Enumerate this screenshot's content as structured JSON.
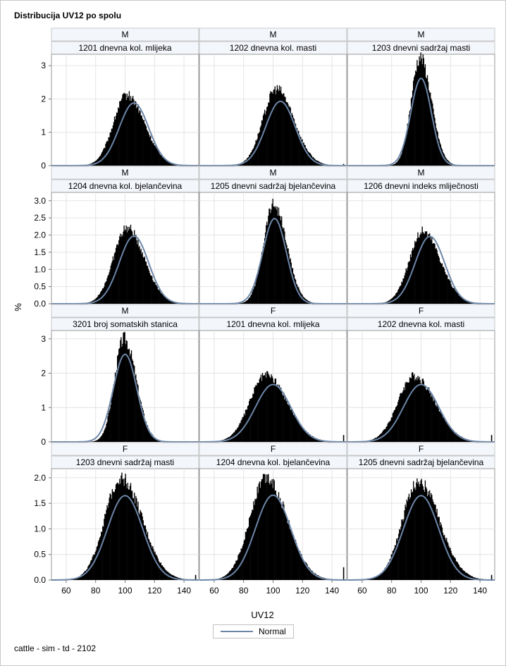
{
  "title": "Distribucija UV12 po spolu",
  "footnote": "cattle - sim - td - 2102",
  "legend": {
    "label": "Normal"
  },
  "colors": {
    "bars": "#000000",
    "normal_curve": "#6c86a8",
    "strip_bg": "#f3f6fb",
    "grid": "#e4e4e4"
  },
  "chart_data": {
    "type": "histogram-panel",
    "xlabel": "UV12",
    "ylabel": "%",
    "xlim": [
      50,
      150
    ],
    "x_ticks": [
      60,
      80,
      100,
      120,
      140
    ],
    "rows": [
      {
        "ylim": [
          0,
          3.3
        ],
        "y_ticks": [
          "0",
          "1",
          "2",
          "3"
        ],
        "y_tick_values": [
          0,
          1,
          2,
          3
        ]
      },
      {
        "ylim": [
          0,
          3.2
        ],
        "y_ticks": [
          "0.0",
          "0.5",
          "1.0",
          "1.5",
          "2.0",
          "2.5",
          "3.0"
        ],
        "y_tick_values": [
          0,
          0.5,
          1,
          1.5,
          2,
          2.5,
          3
        ]
      },
      {
        "ylim": [
          0,
          3.2
        ],
        "y_ticks": [
          "0",
          "1",
          "2",
          "3"
        ],
        "y_tick_values": [
          0,
          1,
          2,
          3
        ]
      },
      {
        "ylim": [
          0,
          2.15
        ],
        "y_ticks": [
          "0.0",
          "0.5",
          "1.0",
          "1.5",
          "2.0"
        ],
        "y_tick_values": [
          0,
          0.5,
          1,
          1.5,
          2
        ]
      }
    ],
    "panels": [
      {
        "sex": "M",
        "trait": "1201 dnevna kol. mlijeka",
        "hist_mode": 101,
        "hist_peak": 2.12,
        "hist_sd": 10,
        "normal_mean": 106,
        "normal_sd": 10,
        "normal_peak": 1.88,
        "edge_spike": 0
      },
      {
        "sex": "M",
        "trait": "1202 dnevna kol. masti",
        "hist_mode": 102,
        "hist_peak": 2.3,
        "hist_sd": 10,
        "normal_mean": 105,
        "normal_sd": 10,
        "normal_peak": 1.93,
        "edge_spike": 0.05
      },
      {
        "sex": "M",
        "trait": "1203 dnevni sadržaj masti",
        "hist_mode": 99,
        "hist_peak": 3.25,
        "hist_sd": 6.5,
        "normal_mean": 100,
        "normal_sd": 7,
        "normal_peak": 2.62,
        "edge_spike": 0
      },
      {
        "sex": "M",
        "trait": "1204 dnevna kol. bjelančevina",
        "hist_mode": 101,
        "hist_peak": 2.2,
        "hist_sd": 10,
        "normal_mean": 106,
        "normal_sd": 10,
        "normal_peak": 1.97,
        "edge_spike": 0
      },
      {
        "sex": "M",
        "trait": "1205 dnevni sadržaj bjelančevina",
        "hist_mode": 100,
        "hist_peak": 2.9,
        "hist_sd": 7.5,
        "normal_mean": 101,
        "normal_sd": 8,
        "normal_peak": 2.48,
        "edge_spike": 0
      },
      {
        "sex": "M",
        "trait": "1206 dnevni indeks mliječnosti",
        "hist_mode": 101,
        "hist_peak": 2.12,
        "hist_sd": 10,
        "normal_mean": 106,
        "normal_sd": 10,
        "normal_peak": 1.96,
        "edge_spike": 0
      },
      {
        "sex": "M",
        "trait": "3201 broj somatskih stanica",
        "hist_mode": 99,
        "hist_peak": 3.0,
        "hist_sd": 7,
        "normal_mean": 100,
        "normal_sd": 8,
        "normal_peak": 2.55,
        "edge_spike": 0
      },
      {
        "sex": "F",
        "trait": "1201 dnevna kol. mlijeka",
        "hist_mode": 95,
        "hist_peak": 1.95,
        "hist_sd": 12,
        "normal_mean": 100,
        "normal_sd": 12,
        "normal_peak": 1.67,
        "edge_spike": 0.2
      },
      {
        "sex": "F",
        "trait": "1202 dnevna kol. masti",
        "hist_mode": 95,
        "hist_peak": 1.92,
        "hist_sd": 12,
        "normal_mean": 100,
        "normal_sd": 12,
        "normal_peak": 1.67,
        "edge_spike": 0.2
      },
      {
        "sex": "F",
        "trait": "1203 dnevni sadržaj masti",
        "hist_mode": 97,
        "hist_peak": 2.0,
        "hist_sd": 12,
        "normal_mean": 100,
        "normal_sd": 12,
        "normal_peak": 1.65,
        "edge_spike": 0.1
      },
      {
        "sex": "F",
        "trait": "1204 dnevna kol. bjelančevina",
        "hist_mode": 95,
        "hist_peak": 2.0,
        "hist_sd": 12,
        "normal_mean": 100,
        "normal_sd": 12,
        "normal_peak": 1.66,
        "edge_spike": 0.25
      },
      {
        "sex": "F",
        "trait": "1205 dnevni sadržaj bjelančevina",
        "hist_mode": 98,
        "hist_peak": 1.92,
        "hist_sd": 12,
        "normal_mean": 100,
        "normal_sd": 12,
        "normal_peak": 1.65,
        "edge_spike": 0.1
      }
    ]
  }
}
